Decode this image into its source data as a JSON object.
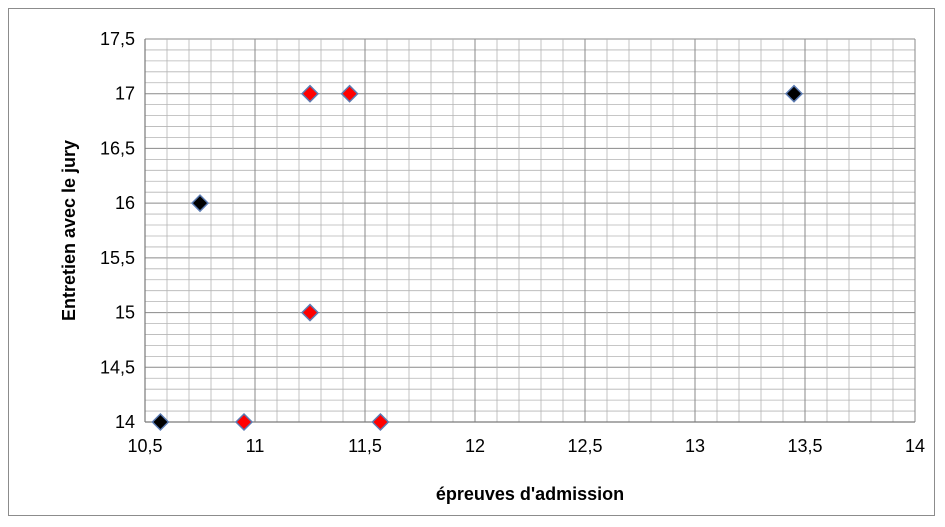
{
  "chart_data": {
    "type": "scatter",
    "title": "",
    "xlabel": "épreuves d'admission",
    "ylabel": "Entretien avec le jury",
    "xlim": [
      10.5,
      14
    ],
    "ylim": [
      14,
      17.5
    ],
    "x_major_step": 0.5,
    "y_major_step": 0.5,
    "x_ticks": [
      "10,5",
      "11",
      "11,5",
      "12",
      "12,5",
      "13",
      "13,5",
      "14"
    ],
    "y_ticks": [
      "14",
      "14,5",
      "15",
      "15,5",
      "16",
      "16,5",
      "17",
      "17,5"
    ],
    "grid": true,
    "legend": "none",
    "marker": "diamond",
    "series": [
      {
        "color": "#000000",
        "edge_color": "#5b7bb2",
        "points": [
          {
            "x": 10.57,
            "y": 14
          },
          {
            "x": 10.75,
            "y": 16
          },
          {
            "x": 13.45,
            "y": 17
          }
        ]
      },
      {
        "color": "#ff0000",
        "edge_color": "#5b7bb2",
        "points": [
          {
            "x": 10.95,
            "y": 14
          },
          {
            "x": 11.25,
            "y": 15
          },
          {
            "x": 11.25,
            "y": 17
          },
          {
            "x": 11.43,
            "y": 17
          },
          {
            "x": 11.57,
            "y": 14
          }
        ]
      }
    ]
  }
}
